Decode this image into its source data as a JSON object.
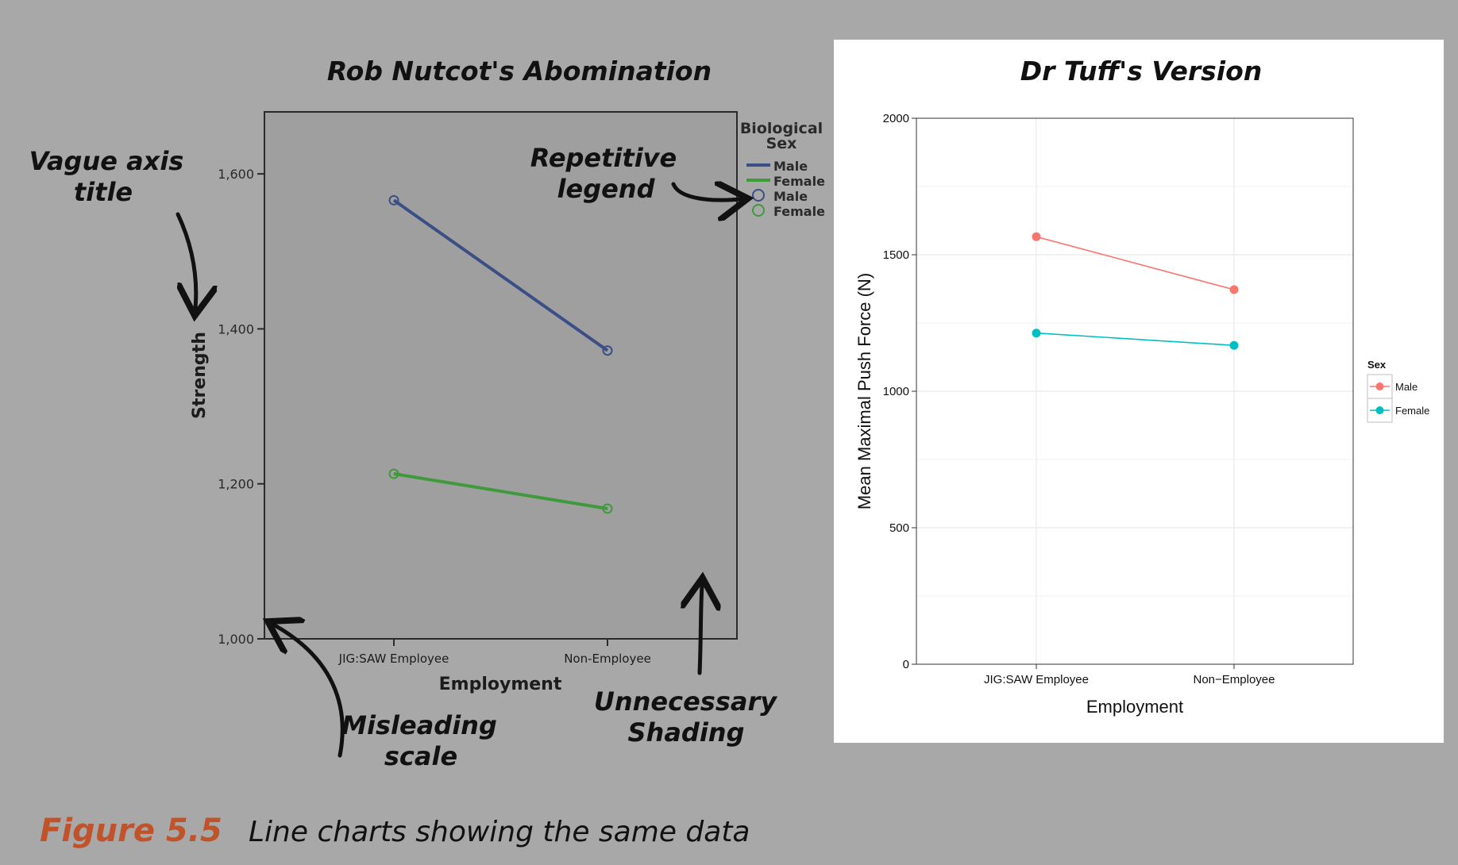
{
  "figure": {
    "label": "Figure 5.5",
    "caption": "Line charts showing the same data"
  },
  "annotations": {
    "vague_axis": [
      "Vague axis",
      "title"
    ],
    "repetitive_legend": [
      "Repetitive",
      "legend"
    ],
    "misleading_scale": [
      "Misleading",
      "scale"
    ],
    "unnecessary_shading": [
      "Unnecessary",
      "Shading"
    ]
  },
  "colors": {
    "background": "#a8a8a8",
    "left_plot_fill": "#9f9f9f",
    "left_male": "#3b4f86",
    "left_female": "#3f9a3c",
    "right_male": "#f8766d",
    "right_female": "#00bfc4",
    "caption_accent": "#c0532a"
  },
  "chart_data": [
    {
      "type": "line",
      "title": "Rob Nutcot's Abomination",
      "xlabel": "Employment",
      "ylabel": "Strength",
      "categories": [
        "JIG:SAW Employee",
        "Non-Employee"
      ],
      "ylim": [
        1000,
        1680
      ],
      "yticks": [
        1000,
        1200,
        1400,
        1600
      ],
      "ytick_labels": [
        "1,000",
        "1,200",
        "1,400",
        "1,600"
      ],
      "legend_title_lines": [
        "Biological",
        "Sex"
      ],
      "legend_entries": [
        "Male",
        "Female",
        "Male",
        "Female"
      ],
      "legend_position": "right",
      "series": [
        {
          "name": "Male",
          "values": [
            1566,
            1372
          ]
        },
        {
          "name": "Female",
          "values": [
            1213,
            1168
          ]
        }
      ]
    },
    {
      "type": "line",
      "title": "Dr Tuff's Version",
      "xlabel": "Employment",
      "ylabel": "Mean Maximal Push Force (N)",
      "categories": [
        "JIG:SAW Employee",
        "Non−Employee"
      ],
      "ylim": [
        0,
        2000
      ],
      "yticks": [
        0,
        500,
        1000,
        1500,
        2000
      ],
      "ytick_labels": [
        "0",
        "500",
        "1000",
        "1500",
        "2000"
      ],
      "grid": true,
      "legend_title": "Sex",
      "legend_position": "right",
      "series": [
        {
          "name": "Male",
          "values": [
            1566,
            1372
          ]
        },
        {
          "name": "Female",
          "values": [
            1213,
            1168
          ]
        }
      ]
    }
  ]
}
